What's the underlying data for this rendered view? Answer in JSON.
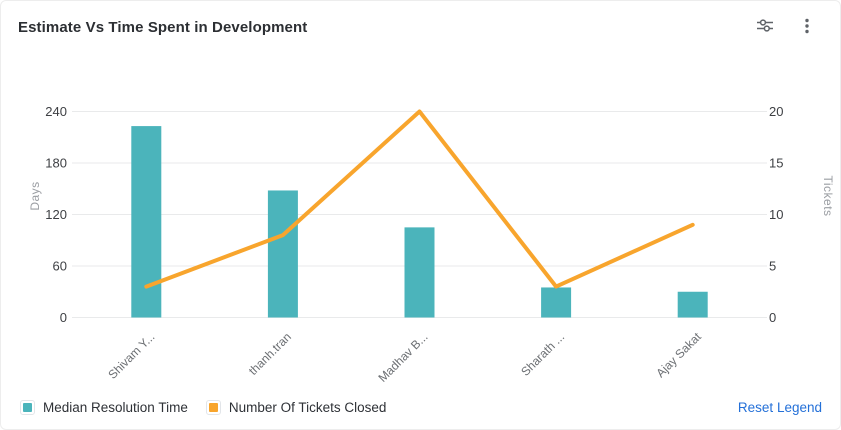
{
  "card": {
    "title": "Estimate Vs Time Spent in Development"
  },
  "toolbar": {
    "icons": [
      "sliders-icon",
      "kebab-menu-icon"
    ]
  },
  "chart_data": {
    "type": "bar+line",
    "title": "Estimate Vs Time Spent in Development",
    "categories": [
      "Shivam Y...",
      "thanh.tran",
      "Madhav B...",
      "Sharath ...",
      "Ajay Sakat"
    ],
    "series": [
      {
        "name": "Median Resolution Time",
        "type": "bar",
        "axis": "left",
        "color": "#4bb4bb",
        "values": [
          223,
          148,
          105,
          35,
          30
        ]
      },
      {
        "name": "Number Of Tickets Closed",
        "type": "line",
        "axis": "right",
        "color": "#f8a52d",
        "values": [
          3,
          8,
          20,
          3,
          9
        ]
      }
    ],
    "left_axis": {
      "label": "Days",
      "min": 0,
      "max": 240,
      "ticks": [
        0,
        60,
        120,
        180,
        240
      ]
    },
    "right_axis": {
      "label": "Tickets",
      "min": 0,
      "max": 20,
      "ticks": [
        0,
        5,
        10,
        15,
        20
      ]
    },
    "grid": true,
    "legend": [
      "Median Resolution Time",
      "Number Of Tickets Closed"
    ],
    "legend_position": "bottom"
  },
  "legend": {
    "items": [
      {
        "label": "Median Resolution Time",
        "color": "#4bb4bb"
      },
      {
        "label": "Number Of Tickets Closed",
        "color": "#f8a52d"
      }
    ],
    "reset_label": "Reset Legend",
    "reset_color": "#2470d8"
  },
  "style": {
    "gridline_color": "#e9eaeb",
    "tick_label_color": "#3e4044",
    "axis_name_color": "#9b9ea3",
    "x_label_color": "#6b6e72",
    "icon_color": "#5f6368"
  }
}
